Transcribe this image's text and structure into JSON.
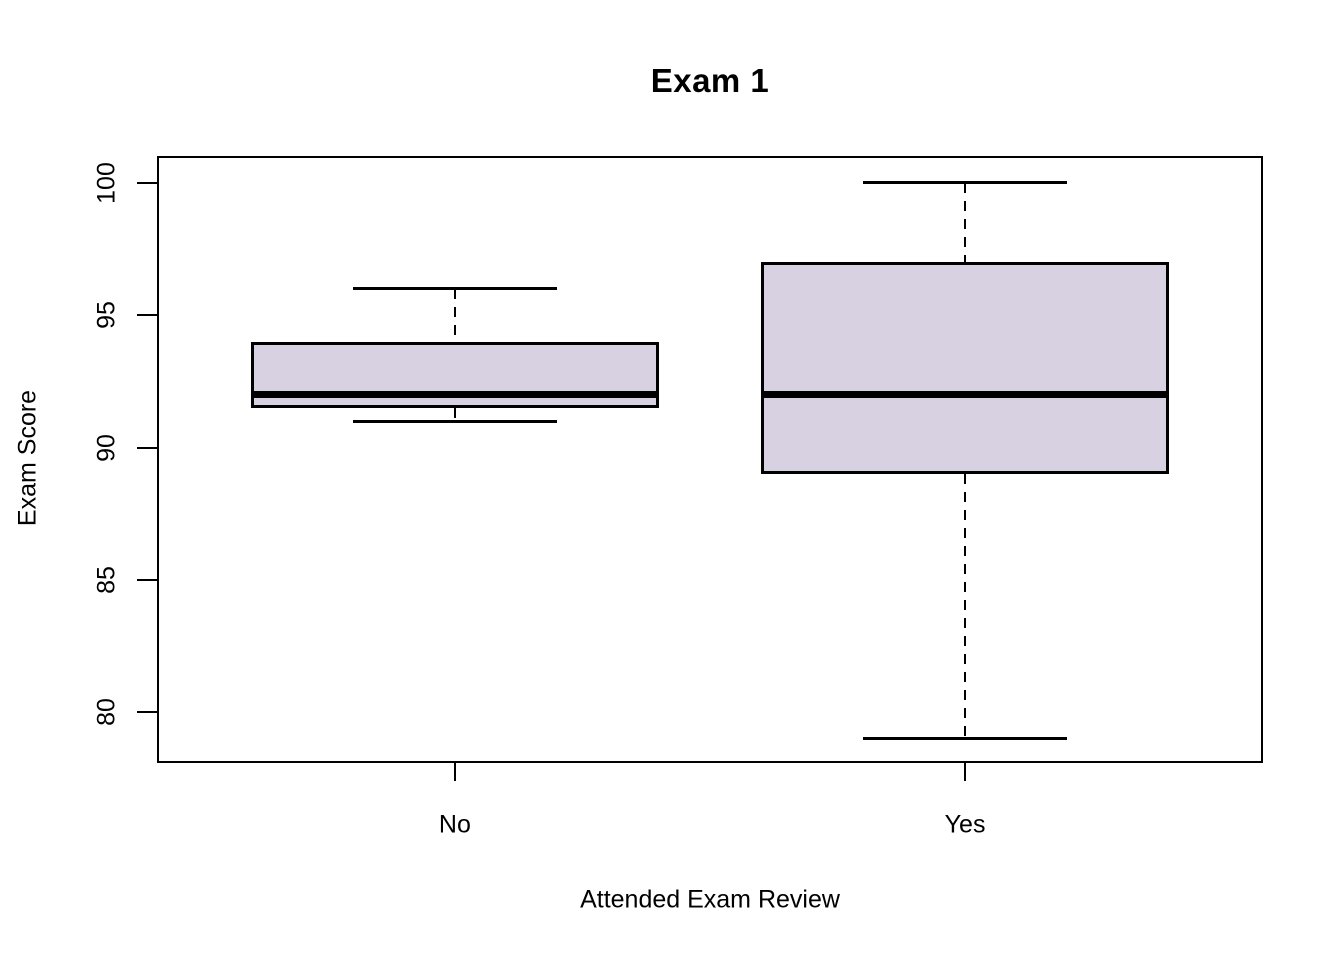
{
  "chart_data": {
    "type": "boxplot",
    "title": "Exam 1",
    "xlabel": "Attended Exam Review",
    "ylabel": "Exam Score",
    "categories": [
      "No",
      "Yes"
    ],
    "y_ticks": [
      80,
      85,
      90,
      95,
      100
    ],
    "ylim": [
      78.16,
      100.94
    ],
    "xlim": [
      0.42,
      2.58
    ],
    "grid": false,
    "legend": "none",
    "box_fill_color": "#D8D1E1",
    "line_color": "#000000",
    "box_width_units": 0.8,
    "cap_width_units": 0.4,
    "boxes": [
      {
        "label": "No",
        "x": 1,
        "min": 91,
        "q1": 91.5,
        "median": 92,
        "q3": 94,
        "max": 96
      },
      {
        "label": "Yes",
        "x": 2,
        "min": 79,
        "q1": 89,
        "median": 92,
        "q3": 97,
        "max": 100
      }
    ]
  }
}
